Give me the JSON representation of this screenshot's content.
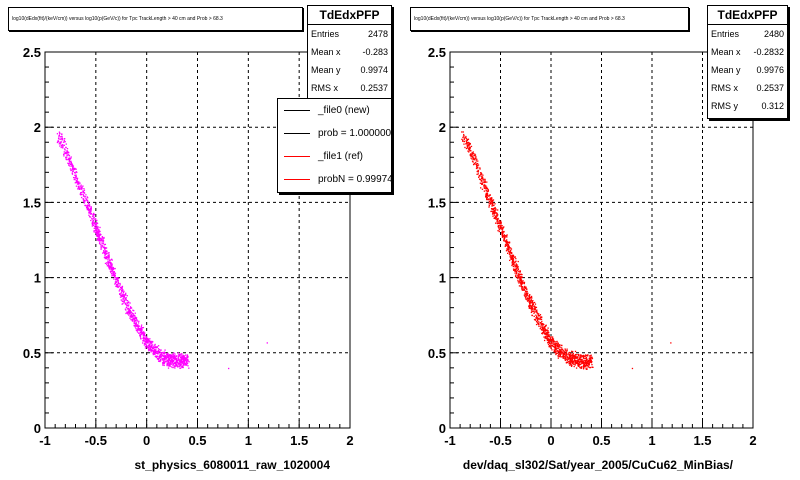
{
  "chart_data": [
    {
      "type": "scatter",
      "title": "log10(dEdx(fit)/(keV/cm)) versus log10(p(GeV/c)) for Tpc TrackLength > 40 cm and Prob > 68.3",
      "xlabel": "st_physics_6080011_raw_1020004",
      "ylabel": "",
      "xlim": [
        -1,
        2
      ],
      "ylim": [
        0,
        2.5
      ],
      "x_ticks": [
        "-1",
        "-0.5",
        "0",
        "0.5",
        "1",
        "1.5",
        "2"
      ],
      "y_ticks": [
        "0",
        "0.5",
        "1",
        "1.5",
        "2",
        "2.5"
      ],
      "grid": true,
      "color": "#ff00ff",
      "series": [
        {
          "name": "TdEdxPFP",
          "band": {
            "x": [
              -0.88,
              -0.8,
              -0.7,
              -0.6,
              -0.5,
              -0.4,
              -0.3,
              -0.2,
              -0.1,
              0.0,
              0.1,
              0.2,
              0.3,
              0.4
            ],
            "y": [
              1.95,
              1.85,
              1.67,
              1.5,
              1.33,
              1.15,
              0.98,
              0.82,
              0.69,
              0.57,
              0.5,
              0.46,
              0.45,
              0.45
            ]
          },
          "outliers": [
            {
              "x": 0.8,
              "y": 0.4
            },
            {
              "x": 1.18,
              "y": 0.57
            }
          ]
        }
      ],
      "stats": {
        "title": "TdEdxPFP",
        "rows": [
          {
            "label": "Entries",
            "value": "2478"
          },
          {
            "label": "Mean x",
            "value": "-0.283"
          },
          {
            "label": "Mean y",
            "value": "0.9974"
          },
          {
            "label": "RMS x",
            "value": "0.2537"
          }
        ]
      },
      "legend": {
        "position": "top-right",
        "entries": [
          {
            "label": "_file0 (new)",
            "color": "#000000"
          },
          {
            "label": "prob = 1.000000",
            "color": "#000000"
          },
          {
            "label": "_file1 (ref)",
            "color": "#ff0000"
          },
          {
            "label": "probN = 0.999748",
            "color": "#ff0000"
          }
        ]
      }
    },
    {
      "type": "scatter",
      "title": "log10(dEdx(fit)/(keV/cm)) versus log10(p(GeV/c)) for Tpc TrackLength > 40 cm and Prob > 68.3",
      "xlabel": "dev/daq_sl302/Sat/year_2005/CuCu62_MinBias/",
      "ylabel": "",
      "xlim": [
        -1,
        2
      ],
      "ylim": [
        0,
        2.5
      ],
      "x_ticks": [
        "-1",
        "-0.5",
        "0",
        "0.5",
        "1",
        "1.5",
        "2"
      ],
      "y_ticks": [
        "0",
        "0.5",
        "1",
        "1.5",
        "2",
        "2.5"
      ],
      "grid": true,
      "color": "#ff0000",
      "series": [
        {
          "name": "TdEdxPFP",
          "band": {
            "x": [
              -0.88,
              -0.8,
              -0.7,
              -0.6,
              -0.5,
              -0.4,
              -0.3,
              -0.2,
              -0.1,
              0.0,
              0.1,
              0.2,
              0.3,
              0.4
            ],
            "y": [
              1.95,
              1.85,
              1.67,
              1.5,
              1.33,
              1.15,
              0.98,
              0.82,
              0.69,
              0.57,
              0.5,
              0.46,
              0.45,
              0.45
            ]
          },
          "outliers": [
            {
              "x": 0.8,
              "y": 0.4
            },
            {
              "x": 1.18,
              "y": 0.57
            }
          ]
        }
      ],
      "stats": {
        "title": "TdEdxPFP",
        "rows": [
          {
            "label": "Entries",
            "value": "2480"
          },
          {
            "label": "Mean x",
            "value": "-0.2832"
          },
          {
            "label": "Mean y",
            "value": "0.9976"
          },
          {
            "label": "RMS x",
            "value": "0.2537"
          },
          {
            "label": "RMS y",
            "value": "0.312"
          }
        ]
      }
    }
  ]
}
